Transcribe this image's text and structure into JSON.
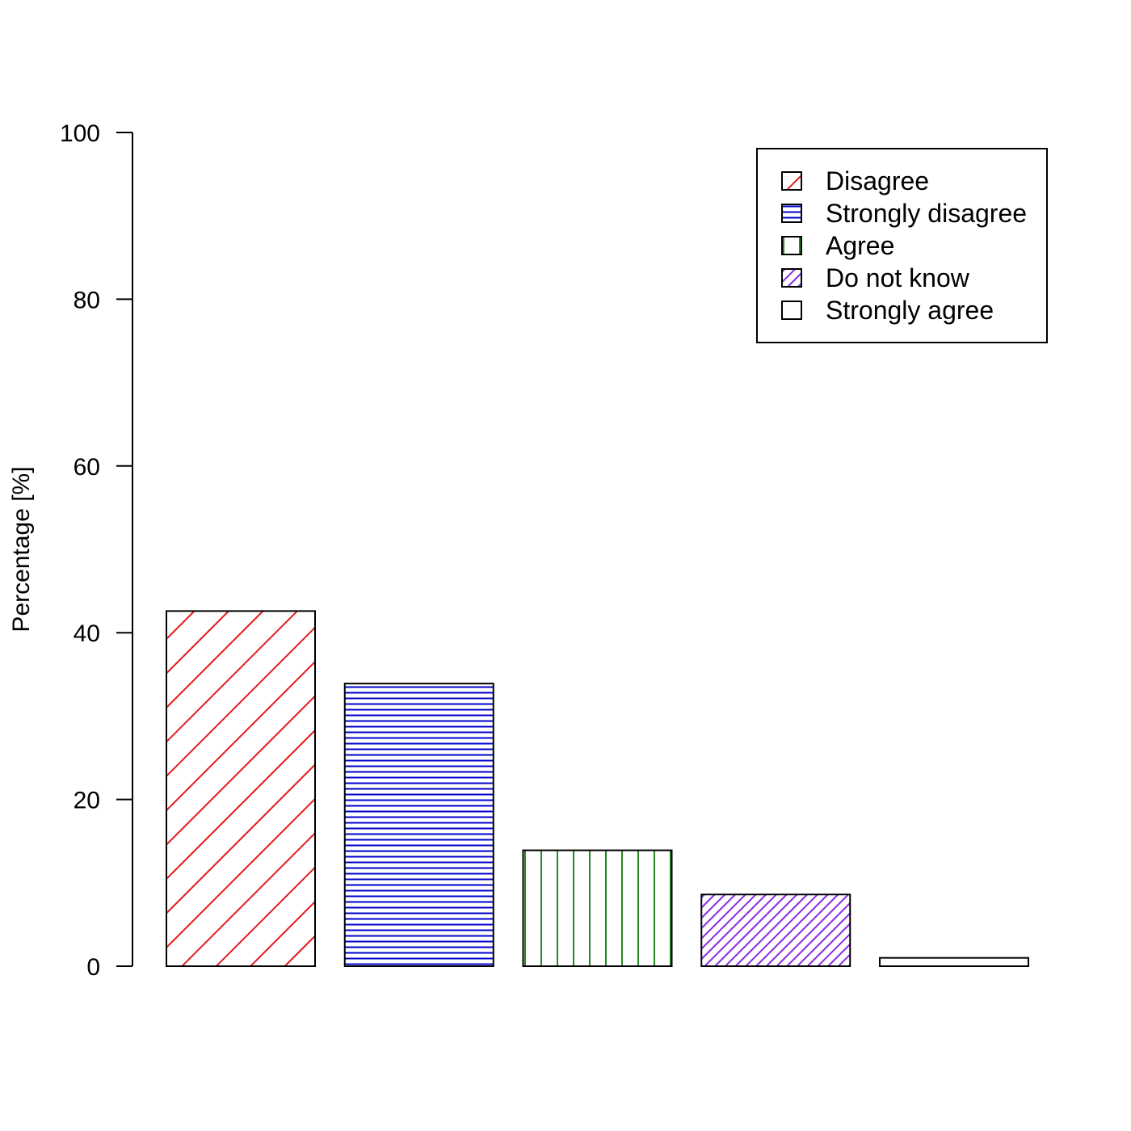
{
  "chart_data": {
    "type": "bar",
    "title": "",
    "xlabel": "",
    "ylabel": "Percentage [%]",
    "ylim": [
      0,
      100
    ],
    "yticks": [
      0,
      20,
      40,
      60,
      80,
      100
    ],
    "grid": false,
    "legend_position": "top-right",
    "categories": [
      "Disagree",
      "Strongly disagree",
      "Agree",
      "Do not know",
      "Strongly agree"
    ],
    "values": [
      42.6,
      33.9,
      13.9,
      8.6,
      1.0
    ],
    "series_colors": [
      "#e41a1c",
      "#0000cc",
      "#228b22",
      "#8a2be2",
      "#ff8c00"
    ],
    "patterns": [
      "diagonal-sparse",
      "horizontal",
      "vertical",
      "diagonal-dense",
      "none"
    ]
  }
}
